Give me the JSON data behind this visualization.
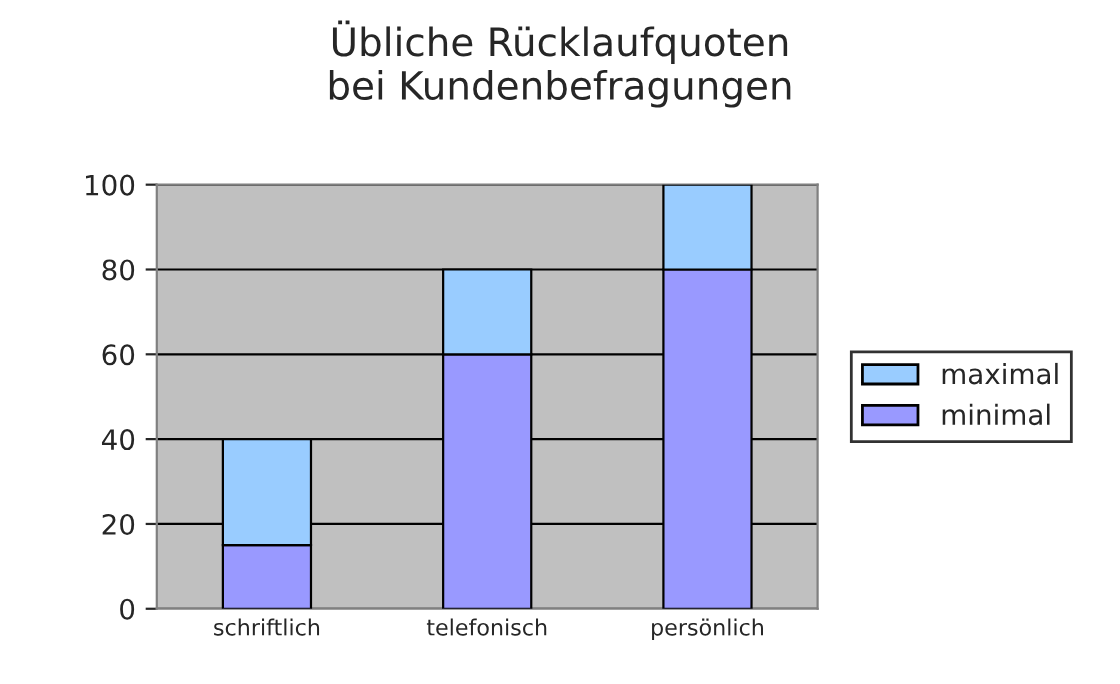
{
  "chart_data": {
    "type": "bar",
    "title": "Übliche Rücklaufquoten\nbei Kundenbefragungen",
    "categories": [
      "schriftlich",
      "telefonisch",
      "persönlich"
    ],
    "stacked": true,
    "series": [
      {
        "name": "minimal",
        "color": "#9999ff",
        "values": [
          15,
          60,
          80
        ]
      },
      {
        "name": "maximal",
        "color": "#99ccff",
        "values": [
          25,
          20,
          20
        ]
      }
    ],
    "ylim": [
      0,
      100
    ],
    "yticks": [
      0,
      20,
      40,
      60,
      80,
      100
    ],
    "grid": "y",
    "legend": "right"
  }
}
